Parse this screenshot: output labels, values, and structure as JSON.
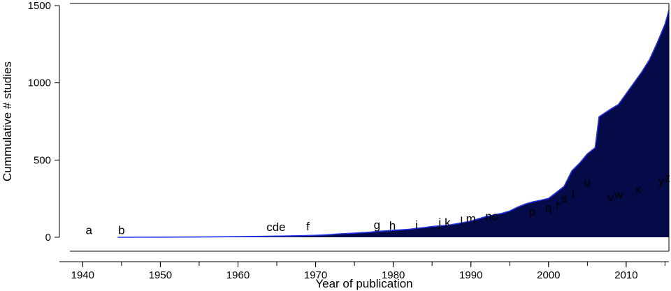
{
  "chart_data": {
    "type": "area",
    "xlabel": "Year of publication",
    "ylabel": "Cummulative # studies",
    "xlim": [
      1937,
      1955.5
    ],
    "ylim": [
      0,
      1500
    ],
    "xlim_full": [
      1937,
      2015.5
    ],
    "xticks": [
      1940,
      1950,
      1960,
      1970,
      1980,
      1990,
      2000,
      2010
    ],
    "yticks": [
      0,
      500,
      1000,
      1500
    ],
    "fill_color": "#050a48",
    "line_color": "#2433ee",
    "grid": false,
    "series": [
      {
        "x": [
          1944.5,
          1950,
          1955,
          1960,
          1963,
          1966,
          1968,
          1970,
          1971,
          1972,
          1973,
          1975,
          1977,
          1978,
          1980,
          1982,
          1983,
          1984,
          1985,
          1987,
          1988,
          1989,
          1990,
          1991,
          1992,
          1993,
          1994,
          1995,
          1996,
          1997,
          1998,
          1999,
          2000,
          2001,
          2002,
          2003,
          2004,
          2005,
          2006,
          2006.5,
          2008,
          2009,
          2010,
          2011,
          2012,
          2013,
          2014,
          2015,
          2015.5
        ],
        "values": [
          0,
          1,
          2,
          4,
          6,
          8,
          10,
          13,
          15,
          18,
          22,
          27,
          33,
          38,
          45,
          52,
          58,
          63,
          70,
          78,
          86,
          95,
          105,
          120,
          135,
          145,
          155,
          170,
          195,
          215,
          230,
          240,
          252,
          290,
          330,
          430,
          480,
          540,
          580,
          780,
          830,
          860,
          930,
          1000,
          1070,
          1150,
          1260,
          1380,
          1470
        ]
      }
    ],
    "annotations": [
      {
        "text": "a",
        "x": 1940.8,
        "y": 20
      },
      {
        "text": "b",
        "x": 1945.0,
        "y": 20
      },
      {
        "text": "cde",
        "x": 1964.9,
        "y": 40
      },
      {
        "text": "f",
        "x": 1969.0,
        "y": 45
      },
      {
        "text": "g",
        "x": 1977.9,
        "y": 55
      },
      {
        "text": "h",
        "x": 1979.9,
        "y": 50
      },
      {
        "text": "i",
        "x": 1983.0,
        "y": 55
      },
      {
        "text": "j",
        "x": 1986.0,
        "y": 70
      },
      {
        "text": "k",
        "x": 1987.0,
        "y": 70
      },
      {
        "text": "l",
        "x": 1988.8,
        "y": 80
      },
      {
        "text": "m",
        "x": 1990.0,
        "y": 95
      },
      {
        "text": "no",
        "x": 1992.7,
        "y": 110
      },
      {
        "text": "p",
        "x": 1997.9,
        "y": 140
      },
      {
        "text": "q",
        "x": 2000.0,
        "y": 165
      },
      {
        "text": "r",
        "x": 2001.2,
        "y": 185
      },
      {
        "text": "s",
        "x": 2002.0,
        "y": 225
      },
      {
        "text": "t",
        "x": 2003.2,
        "y": 255
      },
      {
        "text": "u",
        "x": 2005.0,
        "y": 330
      },
      {
        "text": "v",
        "x": 2008.0,
        "y": 230
      },
      {
        "text": "w",
        "x": 2009.0,
        "y": 250
      },
      {
        "text": "x",
        "x": 2011.5,
        "y": 285
      },
      {
        "text": "y",
        "x": 2014.5,
        "y": 340
      },
      {
        "text": "z",
        "x": 2015.3,
        "y": 360
      }
    ]
  }
}
